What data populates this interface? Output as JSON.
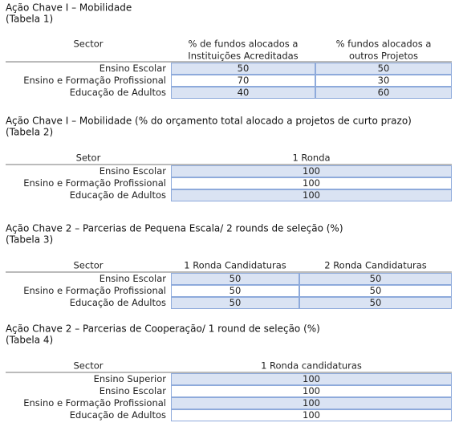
{
  "tables": [
    {
      "title": "Ação Chave I – Mobilidade",
      "subtitle": "(Tabela 1)",
      "header": [
        [
          "Sector"
        ],
        [
          "% de fundos alocados a",
          "Instituições Acreditadas"
        ],
        [
          "% fundos alocados a",
          "outros Projetos"
        ]
      ],
      "rows": [
        [
          "Ensino Escolar",
          50,
          50
        ],
        [
          "Ensino e Formação Profissional",
          70,
          30
        ],
        [
          "Educação de Adultos",
          40,
          60
        ]
      ]
    },
    {
      "title": "Ação Chave I – Mobilidade (% do orçamento total alocado a projetos de curto prazo)",
      "subtitle": "(Tabela 2)",
      "header": [
        [
          "Setor"
        ],
        [
          "1 Ronda"
        ]
      ],
      "rows": [
        [
          "Ensino Escolar",
          100
        ],
        [
          "Ensino e Formação Profissional",
          100
        ],
        [
          "Educação de Adultos",
          100
        ]
      ]
    },
    {
      "title": "Ação Chave 2 – Parcerias de Pequena Escala/ 2 rounds de seleção (%)",
      "subtitle": "(Tabela 3)",
      "header": [
        [
          "Sector"
        ],
        [
          "1 Ronda Candidaturas"
        ],
        [
          "2 Ronda Candidaturas"
        ]
      ],
      "rows": [
        [
          "Ensino Escolar",
          50,
          50
        ],
        [
          "Ensino e Formação Profissional",
          50,
          50
        ],
        [
          "Educação de Adultos",
          50,
          50
        ]
      ]
    },
    {
      "title": "Ação Chave 2 – Parcerias de Cooperação/ 1 round de seleção (%)",
      "subtitle": "(Tabela 4)",
      "header": [
        [
          "Sector"
        ],
        [
          "1 Ronda candidaturas"
        ]
      ],
      "rows": [
        [
          "Ensino Superior",
          100
        ],
        [
          "Ensino Escolar",
          100
        ],
        [
          "Ensino e Formação Profissional",
          100
        ],
        [
          "Educação de Adultos",
          100
        ]
      ]
    }
  ]
}
